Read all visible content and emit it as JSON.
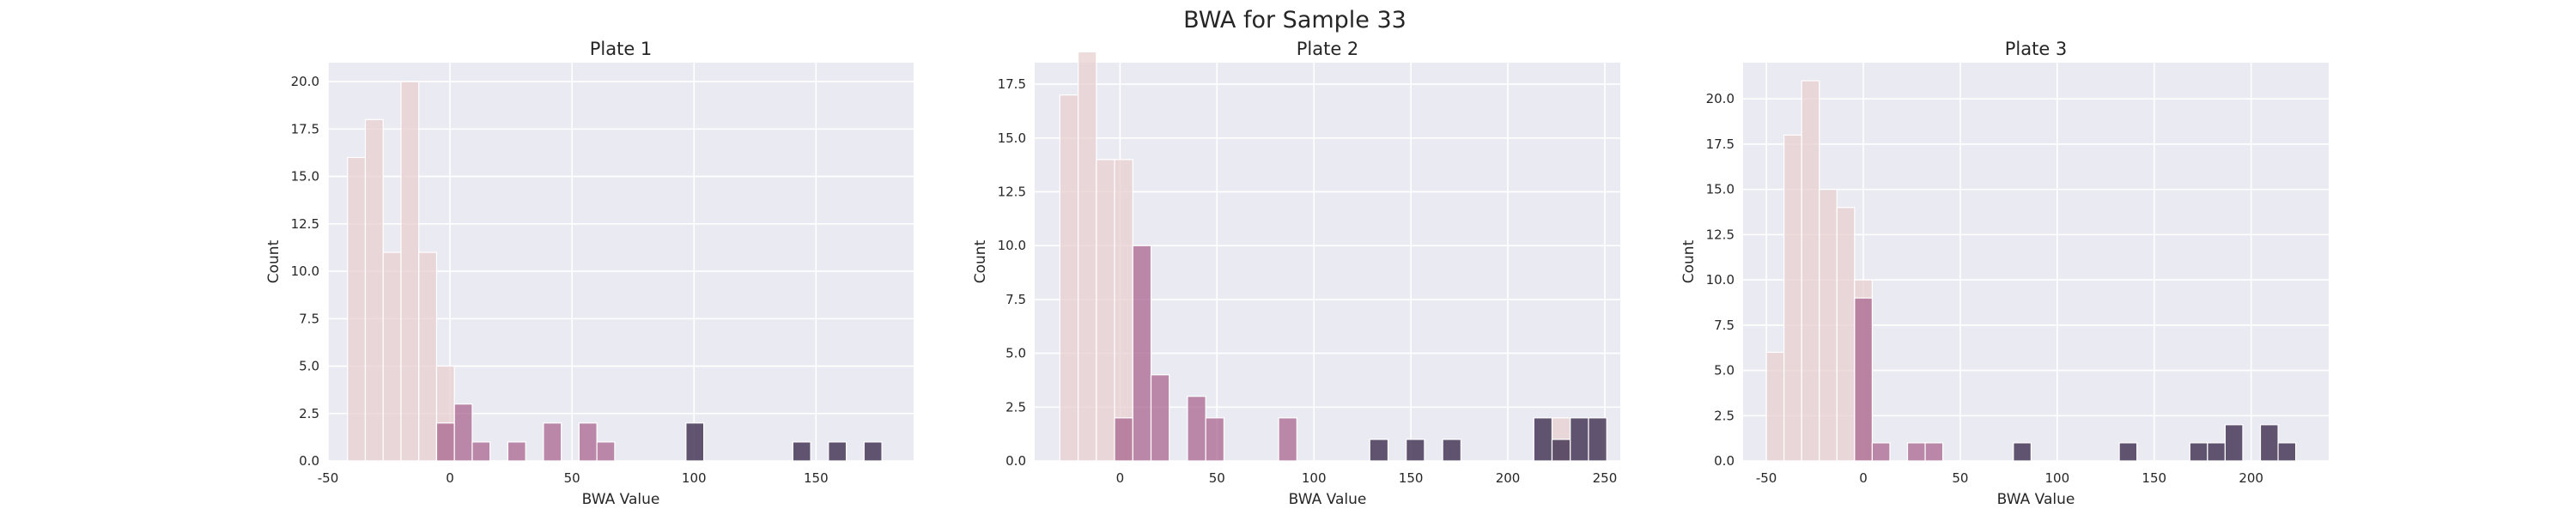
{
  "title": "BWA for Sample 33",
  "colors": {
    "axes_bg": "#eaeaf2",
    "grid": "#ffffff",
    "hue_low": "#e8cfcf",
    "hue_mid": "#a9668f",
    "hue_high": "#3d2d4e",
    "text": "#262626"
  },
  "chart_data": [
    {
      "type": "histogram",
      "title": "Plate 1",
      "xlabel": "BWA Value",
      "ylabel": "Count",
      "xlim": [
        -50,
        190
      ],
      "ylim": [
        0,
        21
      ],
      "xticks": [
        -50,
        0,
        50,
        100,
        150
      ],
      "yticks": [
        0.0,
        2.5,
        5.0,
        7.5,
        10.0,
        12.5,
        15.0,
        17.5,
        20.0
      ],
      "grid": true,
      "bin_width": 7.3,
      "bins": [
        {
          "x": -42,
          "count": 16,
          "hue": "low"
        },
        {
          "x": -34.7,
          "count": 18,
          "hue": "low"
        },
        {
          "x": -27.4,
          "count": 11,
          "hue": "low"
        },
        {
          "x": -20.1,
          "count": 20,
          "hue": "low"
        },
        {
          "x": -12.8,
          "count": 11,
          "hue": "low"
        },
        {
          "x": -5.5,
          "count": 5,
          "hue": "low"
        },
        {
          "x": -5.5,
          "count": 2,
          "hue": "mid"
        },
        {
          "x": 1.8,
          "count": 3,
          "hue": "mid"
        },
        {
          "x": 9.1,
          "count": 1,
          "hue": "mid"
        },
        {
          "x": 23.7,
          "count": 1,
          "hue": "mid"
        },
        {
          "x": 38.3,
          "count": 2,
          "hue": "mid"
        },
        {
          "x": 52.9,
          "count": 2,
          "hue": "mid"
        },
        {
          "x": 60.2,
          "count": 1,
          "hue": "mid"
        },
        {
          "x": 96.7,
          "count": 2,
          "hue": "high"
        },
        {
          "x": 140.5,
          "count": 1,
          "hue": "high"
        },
        {
          "x": 155.1,
          "count": 1,
          "hue": "high"
        },
        {
          "x": 169.7,
          "count": 1,
          "hue": "high"
        }
      ]
    },
    {
      "type": "histogram",
      "title": "Plate 2",
      "xlabel": "BWA Value",
      "ylabel": "Count",
      "xlim": [
        -44,
        258
      ],
      "ylim": [
        0,
        18.5
      ],
      "xticks": [
        0,
        50,
        100,
        150,
        200,
        250
      ],
      "yticks": [
        0.0,
        2.5,
        5.0,
        7.5,
        10.0,
        12.5,
        15.0,
        17.5
      ],
      "grid": true,
      "bin_width": 9.4,
      "bins": [
        {
          "x": -31,
          "count": 17,
          "hue": "low"
        },
        {
          "x": -21.6,
          "count": 19,
          "hue": "low"
        },
        {
          "x": -12.2,
          "count": 14,
          "hue": "low"
        },
        {
          "x": -2.8,
          "count": 14,
          "hue": "low"
        },
        {
          "x": -2.8,
          "count": 2,
          "hue": "mid"
        },
        {
          "x": 6.6,
          "count": 10,
          "hue": "mid"
        },
        {
          "x": 16,
          "count": 4,
          "hue": "mid"
        },
        {
          "x": 34.8,
          "count": 3,
          "hue": "mid"
        },
        {
          "x": 44.2,
          "count": 2,
          "hue": "mid"
        },
        {
          "x": 81.8,
          "count": 2,
          "hue": "mid"
        },
        {
          "x": 128.8,
          "count": 1,
          "hue": "high"
        },
        {
          "x": 147.6,
          "count": 1,
          "hue": "high"
        },
        {
          "x": 166.4,
          "count": 1,
          "hue": "high"
        },
        {
          "x": 213.4,
          "count": 2,
          "hue": "high"
        },
        {
          "x": 222.8,
          "count": 2,
          "hue": "low"
        },
        {
          "x": 222.8,
          "count": 1,
          "hue": "high"
        },
        {
          "x": 232.2,
          "count": 2,
          "hue": "high"
        },
        {
          "x": 241.6,
          "count": 2,
          "hue": "high"
        }
      ]
    },
    {
      "type": "histogram",
      "title": "Plate 3",
      "xlabel": "BWA Value",
      "ylabel": "Count",
      "xlim": [
        -62,
        240
      ],
      "ylim": [
        0,
        22
      ],
      "xticks": [
        -50,
        0,
        50,
        100,
        150,
        200
      ],
      "yticks": [
        0.0,
        2.5,
        5.0,
        7.5,
        10.0,
        12.5,
        15.0,
        17.5,
        20.0
      ],
      "grid": true,
      "bin_width": 9.1,
      "bins": [
        {
          "x": -50,
          "count": 6,
          "hue": "low"
        },
        {
          "x": -40.9,
          "count": 18,
          "hue": "low"
        },
        {
          "x": -31.8,
          "count": 21,
          "hue": "low"
        },
        {
          "x": -22.7,
          "count": 15,
          "hue": "low"
        },
        {
          "x": -13.6,
          "count": 14,
          "hue": "low"
        },
        {
          "x": -4.5,
          "count": 10,
          "hue": "low"
        },
        {
          "x": -4.5,
          "count": 9,
          "hue": "mid"
        },
        {
          "x": 4.6,
          "count": 1,
          "hue": "mid"
        },
        {
          "x": 22.8,
          "count": 1,
          "hue": "mid"
        },
        {
          "x": 31.9,
          "count": 1,
          "hue": "mid"
        },
        {
          "x": 77.4,
          "count": 1,
          "hue": "high"
        },
        {
          "x": 132,
          "count": 1,
          "hue": "high"
        },
        {
          "x": 168.4,
          "count": 1,
          "hue": "high"
        },
        {
          "x": 177.5,
          "count": 1,
          "hue": "high"
        },
        {
          "x": 186.6,
          "count": 2,
          "hue": "high"
        },
        {
          "x": 204.8,
          "count": 2,
          "hue": "high"
        },
        {
          "x": 213.9,
          "count": 1,
          "hue": "high"
        }
      ]
    }
  ]
}
